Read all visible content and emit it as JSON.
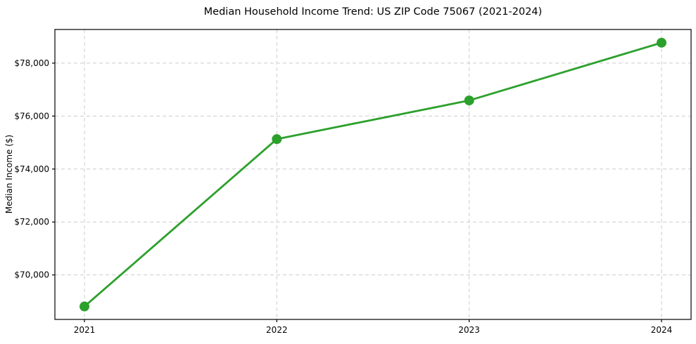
{
  "chart_data": {
    "type": "line",
    "title": "Median Household Income Trend: US ZIP Code 75067 (2021-2024)",
    "xlabel": "",
    "ylabel": "Median Income ($)",
    "categories": [
      "2021",
      "2022",
      "2023",
      "2024"
    ],
    "series": [
      {
        "name": "Median Household Income",
        "values": [
          68810,
          75130,
          76590,
          78770
        ]
      }
    ],
    "ylim": [
      68320,
      79270
    ],
    "yticks": {
      "values": [
        70000,
        72000,
        74000,
        76000,
        78000
      ],
      "labels": [
        "$70,000",
        "$72,000",
        "$74,000",
        "$76,000",
        "$78,000"
      ]
    },
    "grid": true,
    "grid_style": "dashed",
    "legend": "none",
    "colors": {
      "line": "#2ca02c",
      "marker": "#2ca02c",
      "grid": "#cccccc",
      "frame": "#000000",
      "background": "#ffffff"
    }
  }
}
